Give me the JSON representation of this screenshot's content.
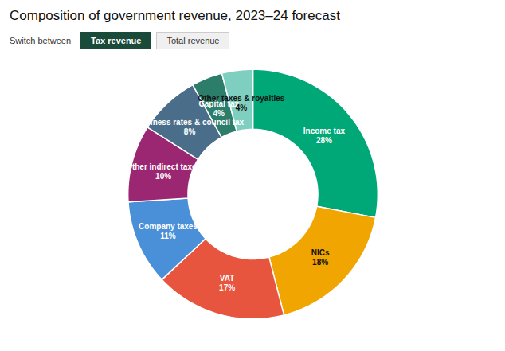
{
  "chart_data": {
    "type": "donut",
    "title": "Composition of government revenue, 2023–24 forecast",
    "annotations": [
      "Switch between",
      "Tax revenue",
      "Total revenue"
    ],
    "categories": [
      "Income tax",
      "NICs",
      "VAT",
      "Company taxes",
      "Other indirect taxes",
      "Business rates & council tax",
      "Capital tax",
      "Other taxes & royalties"
    ],
    "values": [
      28,
      18,
      17,
      11,
      10,
      8,
      4,
      4
    ],
    "value_labels": [
      "28%",
      "18%",
      "17%",
      "11%",
      "10%",
      "8%",
      "4%",
      "4%"
    ],
    "colors": [
      "#00A878",
      "#F0A500",
      "#E8553E",
      "#4A90D9",
      "#9B2671",
      "#4A6E8A",
      "#2D7D6B",
      "#7ECFC0"
    ],
    "data_labels": true
  }
}
